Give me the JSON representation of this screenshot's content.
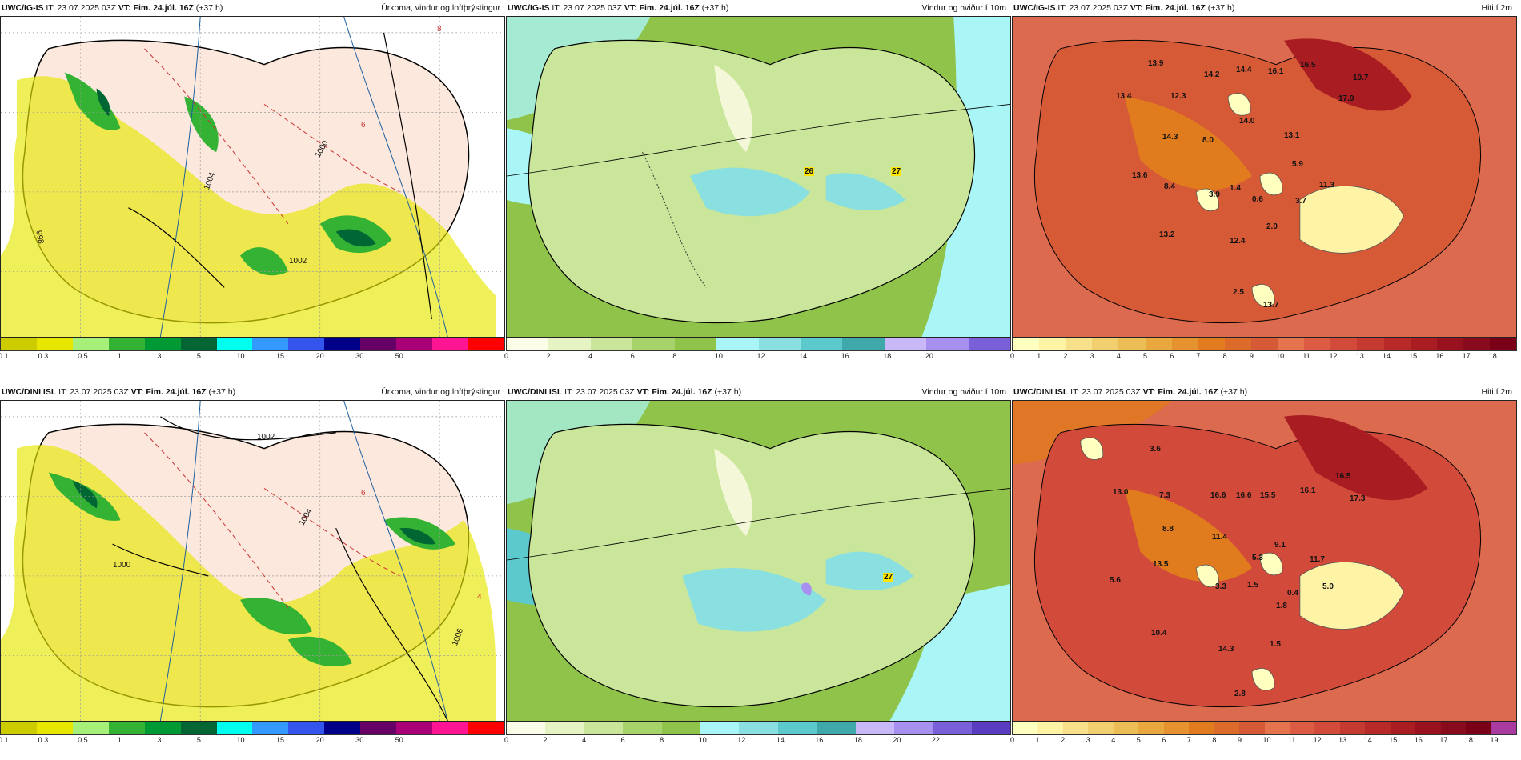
{
  "rows": [
    {
      "model": "UWC/IG-IS",
      "it_label": "IT:",
      "it": "23.07.2025 03Z",
      "vt_label": "VT:",
      "vt": "Fim. 24.júl. 16Z",
      "lead": "(+37 h)"
    },
    {
      "model": "UWC/DINI ISL",
      "it_label": "IT:",
      "it": "23.07.2025 03Z",
      "vt_label": "VT:",
      "vt": "Fim. 24.júl. 16Z",
      "lead": "(+37 h)"
    }
  ],
  "products": {
    "precip": "Úrkoma, vindur og loftþrýstingur",
    "wind": "Vindur og hviður í 10m",
    "temp": "Hiti í 2m"
  },
  "colorbars": {
    "precip": {
      "ticks": [
        "0.1",
        "0.3",
        "0.5",
        "1",
        "3",
        "5",
        "10",
        "15",
        "20",
        "30",
        "50"
      ],
      "colors": [
        "#cccc00",
        "#e6e600",
        "#a6f07a",
        "#33b233",
        "#009933",
        "#006633",
        "#00ffee",
        "#3399ff",
        "#3355ee",
        "#000088",
        "#660066",
        "#aa0077",
        "#ff1493",
        "#ff0000"
      ]
    },
    "wind_top": {
      "ticks": [
        "0",
        "2",
        "4",
        "6",
        "8",
        "10",
        "12",
        "14",
        "16",
        "18",
        "20"
      ],
      "colors": [
        "#fbfde8",
        "#e6f3c2",
        "#c9e69a",
        "#a6d46a",
        "#8fc34a",
        "#aaf5f5",
        "#8ae0e0",
        "#5cc9cc",
        "#3fa8aa",
        "#c8b8f8",
        "#a890f0",
        "#7a60d8"
      ]
    },
    "wind_bottom": {
      "ticks": [
        "0",
        "2",
        "4",
        "6",
        "8",
        "10",
        "12",
        "14",
        "16",
        "18",
        "20",
        "22"
      ],
      "colors": [
        "#fbfde8",
        "#e6f3c2",
        "#c9e69a",
        "#a6d46a",
        "#8fc34a",
        "#aaf5f5",
        "#8ae0e0",
        "#5cc9cc",
        "#3fa8aa",
        "#c8b8f8",
        "#a890f0",
        "#7a60d8",
        "#5a3cc0"
      ]
    },
    "temp_top": {
      "ticks": [
        "0",
        "1",
        "2",
        "3",
        "4",
        "5",
        "6",
        "7",
        "8",
        "9",
        "10",
        "11",
        "12",
        "13",
        "14",
        "15",
        "16",
        "17",
        "18"
      ],
      "colors": [
        "#ffffc0",
        "#fff3a6",
        "#f8e08a",
        "#f1cf6e",
        "#ecbd55",
        "#e9a83e",
        "#e6922e",
        "#e07b1e",
        "#dc6a2a",
        "#d65a36",
        "#e5734e",
        "#db5c42",
        "#d14a3a",
        "#c43a30",
        "#b82a28",
        "#a81c22",
        "#97111f",
        "#880a1d",
        "#7a0018"
      ]
    },
    "temp_bottom": {
      "ticks": [
        "0",
        "1",
        "2",
        "3",
        "4",
        "5",
        "6",
        "7",
        "8",
        "9",
        "10",
        "11",
        "12",
        "13",
        "14",
        "15",
        "16",
        "17",
        "18",
        "19"
      ],
      "colors": [
        "#ffffc0",
        "#fff3a6",
        "#f8e08a",
        "#f1cf6e",
        "#ecbd55",
        "#e9a83e",
        "#e6922e",
        "#e07b1e",
        "#dc6a2a",
        "#d65a36",
        "#e5734e",
        "#db5c42",
        "#d14a3a",
        "#c43a30",
        "#b82a28",
        "#a81c22",
        "#97111f",
        "#880a1d",
        "#7a0018",
        "#a83aa0"
      ]
    }
  },
  "wind_gust_labels": {
    "top": [
      "26",
      "27"
    ],
    "bottom": [
      "27"
    ]
  },
  "temp_labels_top": [
    "13.9",
    "13.4",
    "12.3",
    "14.2",
    "14.4",
    "16.1",
    "16.5",
    "10.7",
    "17.9",
    "14.3",
    "14.0",
    "13.1",
    "8.0",
    "13.6",
    "5.9",
    "8.4",
    "3.9",
    "1.4",
    "11.3",
    "0.6",
    "3.7",
    "2.0",
    "13.2",
    "12.4",
    "2.5",
    "13.7"
  ],
  "temp_labels_bottom": [
    "3.6",
    "13.0",
    "7.3",
    "16.6",
    "16.6",
    "15.5",
    "16.1",
    "16.5",
    "17.3",
    "8.8",
    "11.4",
    "13.5",
    "9.1",
    "11.7",
    "5.6",
    "5.3",
    "3.3",
    "1.5",
    "0.4",
    "5.0",
    "1.8",
    "10.4",
    "14.3",
    "1.5",
    "2.8"
  ],
  "pressure_labels": {
    "top": [
      "1000",
      "1002",
      "1004",
      "998",
      "6",
      "8"
    ],
    "bottom": [
      "1000",
      "1002",
      "1004",
      "1006",
      "6",
      "4"
    ]
  }
}
